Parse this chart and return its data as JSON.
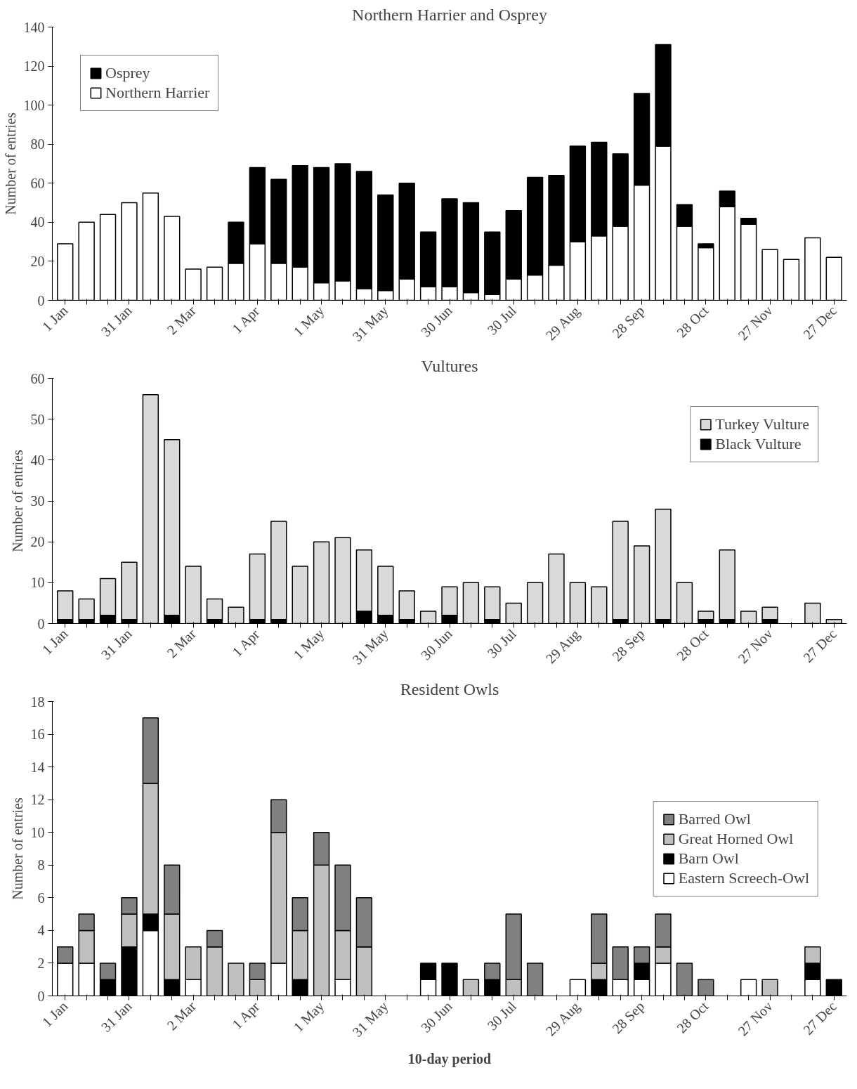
{
  "chart_data": [
    {
      "type": "bar",
      "title": "Northern Harrier and Osprey",
      "ylabel": "Number of entries",
      "stacked": true,
      "legend": "top left",
      "grid": false,
      "categories": [
        "1 Jan",
        null,
        null,
        "31 Jan",
        null,
        null,
        "2 Mar",
        null,
        null,
        "1 Apr",
        null,
        null,
        "1 May",
        null,
        null,
        "31 May",
        null,
        null,
        "30 Jun",
        null,
        null,
        "30 Jul",
        null,
        null,
        "29 Aug",
        null,
        null,
        "28 Sep",
        null,
        null,
        "28 Oct",
        null,
        null,
        "27 Nov",
        null,
        null,
        "27 Dec"
      ],
      "ylim": [
        0,
        140
      ],
      "yticks": [
        0,
        20,
        40,
        60,
        80,
        100,
        120,
        140
      ],
      "series": [
        {
          "name": "Northern Harrier",
          "color": "#ffffff",
          "values": [
            29,
            40,
            44,
            50,
            55,
            43,
            16,
            17,
            19,
            29,
            19,
            17,
            9,
            10,
            6,
            5,
            11,
            7,
            7,
            4,
            3,
            11,
            13,
            18,
            30,
            33,
            38,
            59,
            79,
            38,
            27,
            48,
            39,
            26,
            21,
            32,
            22
          ]
        },
        {
          "name": "Osprey",
          "color": "#000000",
          "values": [
            0,
            0,
            0,
            0,
            0,
            0,
            0,
            0,
            21,
            39,
            43,
            52,
            59,
            60,
            60,
            49,
            49,
            28,
            45,
            46,
            32,
            35,
            50,
            46,
            49,
            48,
            37,
            47,
            52,
            11,
            2,
            8,
            3,
            0,
            0,
            0,
            0
          ]
        }
      ]
    },
    {
      "type": "bar",
      "title": "Vultures",
      "ylabel": "Number of entries",
      "stacked": true,
      "legend": "top right",
      "grid": false,
      "categories": [
        "1 Jan",
        null,
        null,
        "31 Jan",
        null,
        null,
        "2 Mar",
        null,
        null,
        "1 Apr",
        null,
        null,
        "1 May",
        null,
        null,
        "31 May",
        null,
        null,
        "30 Jun",
        null,
        null,
        "30 Jul",
        null,
        null,
        "29 Aug",
        null,
        null,
        "28 Sep",
        null,
        null,
        "28 Oct",
        null,
        null,
        "27 Nov",
        null,
        null,
        "27 Dec"
      ],
      "ylim": [
        0,
        60
      ],
      "yticks": [
        0,
        10,
        20,
        30,
        40,
        50,
        60
      ],
      "series": [
        {
          "name": "Black Vulture",
          "color": "#000000",
          "values": [
            1,
            1,
            2,
            1,
            0,
            2,
            0,
            1,
            0,
            1,
            1,
            0,
            0,
            0,
            3,
            2,
            1,
            0,
            2,
            0,
            1,
            0,
            0,
            0,
            0,
            0,
            1,
            0,
            1,
            0,
            1,
            1,
            0,
            1,
            0,
            0,
            0
          ]
        },
        {
          "name": "Turkey Vulture",
          "color": "#d9d9d9",
          "values": [
            7,
            5,
            9,
            14,
            56,
            43,
            14,
            5,
            4,
            16,
            24,
            14,
            20,
            21,
            15,
            12,
            7,
            3,
            7,
            10,
            8,
            5,
            10,
            17,
            10,
            9,
            24,
            19,
            27,
            10,
            2,
            17,
            3,
            3,
            0,
            5,
            1
          ]
        }
      ]
    },
    {
      "type": "bar",
      "title": "Resident Owls",
      "ylabel": "Number of entries",
      "xlabel": "10-day period",
      "stacked": true,
      "legend": "right",
      "grid": false,
      "categories": [
        "1 Jan",
        null,
        null,
        "31 Jan",
        null,
        null,
        "2 Mar",
        null,
        null,
        "1 Apr",
        null,
        null,
        "1 May",
        null,
        null,
        "31 May",
        null,
        null,
        "30 Jun",
        null,
        null,
        "30 Jul",
        null,
        null,
        "29 Aug",
        null,
        null,
        "28 Sep",
        null,
        null,
        "28 Oct",
        null,
        null,
        "27 Nov",
        null,
        null,
        "27 Dec"
      ],
      "ylim": [
        0,
        18
      ],
      "yticks": [
        0,
        2,
        4,
        6,
        8,
        10,
        12,
        14,
        16,
        18
      ],
      "series": [
        {
          "name": "Eastern Screech-Owl",
          "color": "#ffffff",
          "values": [
            2,
            2,
            0,
            0,
            4,
            0,
            1,
            0,
            0,
            0,
            2,
            0,
            0,
            1,
            0,
            0,
            0,
            1,
            0,
            0,
            0,
            0,
            0,
            0,
            1,
            0,
            1,
            1,
            2,
            0,
            0,
            0,
            1,
            0,
            0,
            1,
            0
          ]
        },
        {
          "name": "Barn Owl",
          "color": "#000000",
          "values": [
            0,
            0,
            1,
            3,
            1,
            1,
            0,
            0,
            0,
            0,
            0,
            1,
            0,
            0,
            0,
            0,
            0,
            1,
            2,
            0,
            1,
            0,
            0,
            0,
            0,
            1,
            0,
            1,
            0,
            0,
            0,
            0,
            0,
            0,
            0,
            1,
            1
          ]
        },
        {
          "name": "Great Horned Owl",
          "color": "#c0c0c0",
          "values": [
            0,
            2,
            0,
            2,
            8,
            4,
            2,
            3,
            2,
            1,
            8,
            3,
            8,
            3,
            3,
            0,
            0,
            0,
            0,
            1,
            0,
            1,
            0,
            0,
            0,
            1,
            0,
            0,
            1,
            0,
            0,
            0,
            0,
            1,
            0,
            1,
            0
          ]
        },
        {
          "name": "Barred Owl",
          "color": "#808080",
          "values": [
            1,
            1,
            1,
            1,
            4,
            3,
            0,
            1,
            0,
            1,
            2,
            2,
            2,
            4,
            3,
            0,
            0,
            0,
            0,
            0,
            1,
            4,
            2,
            0,
            0,
            3,
            2,
            1,
            2,
            2,
            1,
            0,
            0,
            0,
            0,
            0,
            0
          ]
        }
      ]
    }
  ]
}
